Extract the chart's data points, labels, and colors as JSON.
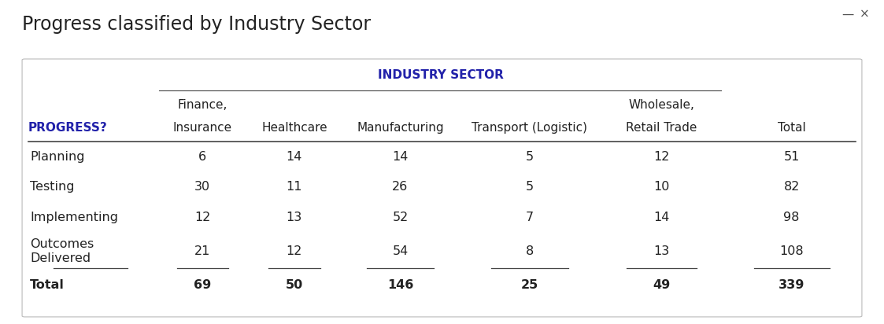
{
  "title": "Progress classified by Industry Sector",
  "title_fontsize": 17,
  "title_color": "#222222",
  "sector_header": "INDUSTRY SECTOR",
  "sector_header_color": "#2222AA",
  "col_header_line1_finance": "Finance,",
  "col_header_line1_wholesale": "Wholesale,",
  "col_header_line2": [
    "PROGRESS?",
    "Insurance",
    "Healthcare",
    "Manufacturing",
    "Transport (Logistic)",
    "Retail Trade",
    "Total"
  ],
  "progress_color": "#2222AA",
  "rows": [
    {
      "label": "Planning",
      "label2": null,
      "values": [
        6,
        14,
        14,
        5,
        12,
        51
      ]
    },
    {
      "label": "Testing",
      "label2": null,
      "values": [
        30,
        11,
        26,
        5,
        10,
        82
      ]
    },
    {
      "label": "Implementing",
      "label2": null,
      "values": [
        12,
        13,
        52,
        7,
        14,
        98
      ]
    },
    {
      "label": "Outcomes",
      "label2": "Delivered",
      "values": [
        21,
        12,
        54,
        8,
        13,
        108
      ]
    },
    {
      "label": "Total",
      "label2": null,
      "values": [
        69,
        50,
        146,
        25,
        49,
        339
      ]
    }
  ],
  "bg_color": "#ffffff",
  "table_border_color": "#bbbbbb",
  "line_color": "#444444",
  "data_fontsize": 11.5,
  "header_fontsize": 11,
  "label_fontsize": 11.5
}
